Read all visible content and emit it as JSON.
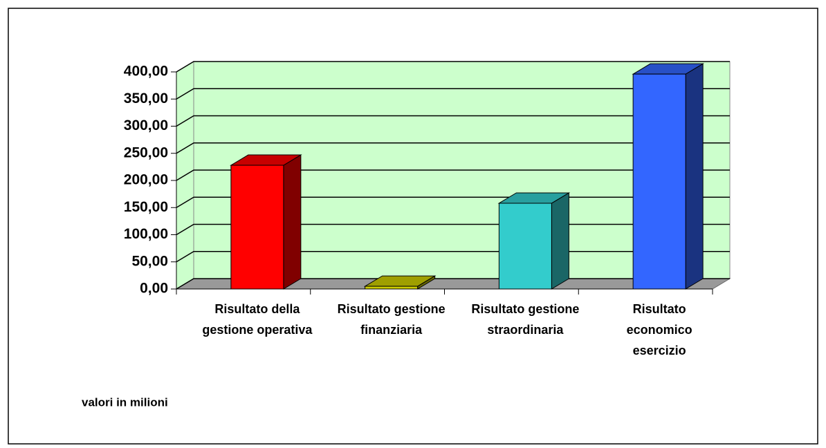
{
  "chart_data": {
    "type": "bar3d",
    "categories": [
      [
        "Risultato della",
        "gestione operativa"
      ],
      [
        "Risultato gestione",
        "finanziaria"
      ],
      [
        "Risultato gestione",
        "straordinaria"
      ],
      [
        "Risultato",
        "economico",
        "esercizio"
      ]
    ],
    "values": [
      228,
      5,
      158,
      396
    ],
    "colors": [
      "#ff0000",
      "#cccc00",
      "#33cccc",
      "#3366ff"
    ],
    "ylim": [
      0,
      400
    ],
    "yticks": [
      {
        "value": 0,
        "label": "0,00"
      },
      {
        "value": 50,
        "label": "50,00"
      },
      {
        "value": 100,
        "label": "100,00"
      },
      {
        "value": 150,
        "label": "150,00"
      },
      {
        "value": 200,
        "label": "200,00"
      },
      {
        "value": 250,
        "label": "250,00"
      },
      {
        "value": 300,
        "label": "300,00"
      },
      {
        "value": 350,
        "label": "350,00"
      },
      {
        "value": 400,
        "label": "400,00"
      }
    ],
    "grid": true,
    "note": "valori in milioni"
  }
}
